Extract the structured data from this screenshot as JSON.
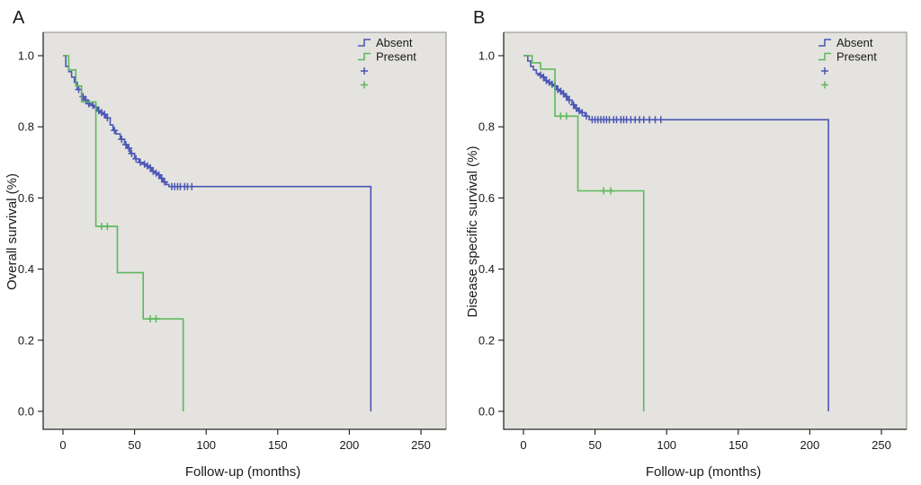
{
  "colors": {
    "plot_background": "#e4e3df",
    "frame": "#8a8a84",
    "axis": "#2b2b2b",
    "absent": "#4a55b5",
    "present": "#5cb85c"
  },
  "chart_data": [
    {
      "type": "line",
      "subtype": "kaplan-meier-step",
      "panel_label": "A",
      "title": "",
      "xlabel": "Follow-up (months)",
      "ylabel": "Overall survival (%)",
      "xlim": [
        0,
        250
      ],
      "ylim": [
        0,
        1.0
      ],
      "grid": false,
      "legend_position": "top-right",
      "xticks": [
        0,
        50,
        100,
        150,
        200,
        250
      ],
      "yticks": [
        [
          0.0,
          "0.0"
        ],
        [
          0.2,
          "0.2"
        ],
        [
          0.4,
          "0.4"
        ],
        [
          0.6,
          "0.6"
        ],
        [
          0.8,
          "0.8"
        ],
        [
          1.0,
          "1.0"
        ]
      ],
      "legend": [
        {
          "label": "Absent",
          "color": "#4a55b5",
          "symbol": "step"
        },
        {
          "label": "Present",
          "color": "#5cb85c",
          "symbol": "step"
        },
        {
          "label": "",
          "color": "#4a55b5",
          "symbol": "censor"
        },
        {
          "label": "",
          "color": "#5cb85c",
          "symbol": "censor"
        }
      ],
      "series": [
        {
          "name": "Absent",
          "color": "#4a55b5",
          "points": [
            [
              0,
              1.0
            ],
            [
              2,
              0.97
            ],
            [
              4,
              0.955
            ],
            [
              6,
              0.94
            ],
            [
              8,
              0.925
            ],
            [
              10,
              0.905
            ],
            [
              13,
              0.885
            ],
            [
              15,
              0.875
            ],
            [
              17,
              0.865
            ],
            [
              20,
              0.86
            ],
            [
              22,
              0.855
            ],
            [
              24,
              0.845
            ],
            [
              26,
              0.84
            ],
            [
              28,
              0.835
            ],
            [
              30,
              0.825
            ],
            [
              33,
              0.805
            ],
            [
              35,
              0.79
            ],
            [
              37,
              0.78
            ],
            [
              40,
              0.765
            ],
            [
              43,
              0.75
            ],
            [
              45,
              0.74
            ],
            [
              47,
              0.725
            ],
            [
              50,
              0.71
            ],
            [
              53,
              0.7
            ],
            [
              56,
              0.695
            ],
            [
              58,
              0.69
            ],
            [
              60,
              0.685
            ],
            [
              62,
              0.675
            ],
            [
              64,
              0.67
            ],
            [
              66,
              0.665
            ],
            [
              68,
              0.655
            ],
            [
              70,
              0.645
            ],
            [
              72,
              0.638
            ],
            [
              74,
              0.632
            ],
            [
              215,
              0.632
            ],
            [
              215,
              0
            ]
          ],
          "censors": [
            [
              11,
              0.905
            ],
            [
              14,
              0.885
            ],
            [
              16,
              0.875
            ],
            [
              18,
              0.865
            ],
            [
              21,
              0.86
            ],
            [
              23,
              0.855
            ],
            [
              25,
              0.845
            ],
            [
              27,
              0.84
            ],
            [
              29,
              0.835
            ],
            [
              31,
              0.825
            ],
            [
              36,
              0.79
            ],
            [
              41,
              0.765
            ],
            [
              44,
              0.75
            ],
            [
              46,
              0.74
            ],
            [
              48,
              0.725
            ],
            [
              51,
              0.71
            ],
            [
              54,
              0.7
            ],
            [
              57,
              0.695
            ],
            [
              59,
              0.69
            ],
            [
              61,
              0.685
            ],
            [
              63,
              0.675
            ],
            [
              65,
              0.67
            ],
            [
              67,
              0.665
            ],
            [
              69,
              0.655
            ],
            [
              71,
              0.645
            ],
            [
              76,
              0.632
            ],
            [
              78,
              0.632
            ],
            [
              80,
              0.632
            ],
            [
              82,
              0.632
            ],
            [
              85,
              0.632
            ],
            [
              87,
              0.632
            ],
            [
              90,
              0.632
            ]
          ]
        },
        {
          "name": "Present",
          "color": "#5cb85c",
          "points": [
            [
              0,
              1.0
            ],
            [
              4,
              0.96
            ],
            [
              9,
              0.915
            ],
            [
              13,
              0.87
            ],
            [
              23,
              0.52
            ],
            [
              38,
              0.39
            ],
            [
              56,
              0.26
            ],
            [
              84,
              0.26
            ],
            [
              84,
              0
            ]
          ],
          "censors": [
            [
              27,
              0.52
            ],
            [
              31,
              0.52
            ],
            [
              61,
              0.26
            ],
            [
              65,
              0.26
            ]
          ]
        }
      ]
    },
    {
      "type": "line",
      "subtype": "kaplan-meier-step",
      "panel_label": "B",
      "title": "",
      "xlabel": "Follow-up (months)",
      "ylabel": "Disease specific survival (%)",
      "xlim": [
        0,
        250
      ],
      "ylim": [
        0,
        1.0
      ],
      "grid": false,
      "legend_position": "top-right",
      "xticks": [
        0,
        50,
        100,
        150,
        200,
        250
      ],
      "yticks": [
        [
          0.0,
          "0.0"
        ],
        [
          0.2,
          "0.2"
        ],
        [
          0.4,
          "0.4"
        ],
        [
          0.6,
          "0.6"
        ],
        [
          0.8,
          "0.8"
        ],
        [
          1.0,
          "1.0"
        ]
      ],
      "legend": [
        {
          "label": "Absent",
          "color": "#4a55b5",
          "symbol": "step"
        },
        {
          "label": "Present",
          "color": "#5cb85c",
          "symbol": "step"
        },
        {
          "label": "",
          "color": "#4a55b5",
          "symbol": "censor"
        },
        {
          "label": "",
          "color": "#5cb85c",
          "symbol": "censor"
        }
      ],
      "series": [
        {
          "name": "Absent",
          "color": "#4a55b5",
          "points": [
            [
              0,
              1.0
            ],
            [
              3,
              0.985
            ],
            [
              5,
              0.97
            ],
            [
              7,
              0.96
            ],
            [
              9,
              0.95
            ],
            [
              11,
              0.945
            ],
            [
              13,
              0.94
            ],
            [
              15,
              0.93
            ],
            [
              17,
              0.925
            ],
            [
              19,
              0.92
            ],
            [
              21,
              0.915
            ],
            [
              23,
              0.905
            ],
            [
              25,
              0.9
            ],
            [
              27,
              0.893
            ],
            [
              29,
              0.885
            ],
            [
              31,
              0.875
            ],
            [
              34,
              0.862
            ],
            [
              36,
              0.852
            ],
            [
              38,
              0.845
            ],
            [
              40,
              0.84
            ],
            [
              43,
              0.83
            ],
            [
              46,
              0.82
            ],
            [
              213,
              0.82
            ],
            [
              213,
              0
            ]
          ],
          "censors": [
            [
              12,
              0.945
            ],
            [
              14,
              0.94
            ],
            [
              16,
              0.93
            ],
            [
              18,
              0.925
            ],
            [
              20,
              0.92
            ],
            [
              22,
              0.915
            ],
            [
              24,
              0.905
            ],
            [
              26,
              0.9
            ],
            [
              28,
              0.893
            ],
            [
              30,
              0.885
            ],
            [
              32,
              0.875
            ],
            [
              35,
              0.862
            ],
            [
              37,
              0.852
            ],
            [
              39,
              0.845
            ],
            [
              41,
              0.84
            ],
            [
              44,
              0.83
            ],
            [
              48,
              0.82
            ],
            [
              50,
              0.82
            ],
            [
              52,
              0.82
            ],
            [
              54,
              0.82
            ],
            [
              56,
              0.82
            ],
            [
              58,
              0.82
            ],
            [
              60,
              0.82
            ],
            [
              63,
              0.82
            ],
            [
              65,
              0.82
            ],
            [
              68,
              0.82
            ],
            [
              70,
              0.82
            ],
            [
              72,
              0.82
            ],
            [
              75,
              0.82
            ],
            [
              78,
              0.82
            ],
            [
              81,
              0.82
            ],
            [
              84,
              0.82
            ],
            [
              88,
              0.82
            ],
            [
              92,
              0.82
            ],
            [
              96,
              0.82
            ]
          ]
        },
        {
          "name": "Present",
          "color": "#5cb85c",
          "points": [
            [
              0,
              1.0
            ],
            [
              6,
              0.98
            ],
            [
              12,
              0.962
            ],
            [
              22,
              0.83
            ],
            [
              38,
              0.62
            ],
            [
              84,
              0.62
            ],
            [
              84,
              0
            ]
          ],
          "censors": [
            [
              26,
              0.83
            ],
            [
              30,
              0.83
            ],
            [
              56,
              0.62
            ],
            [
              61,
              0.62
            ]
          ]
        }
      ]
    }
  ]
}
